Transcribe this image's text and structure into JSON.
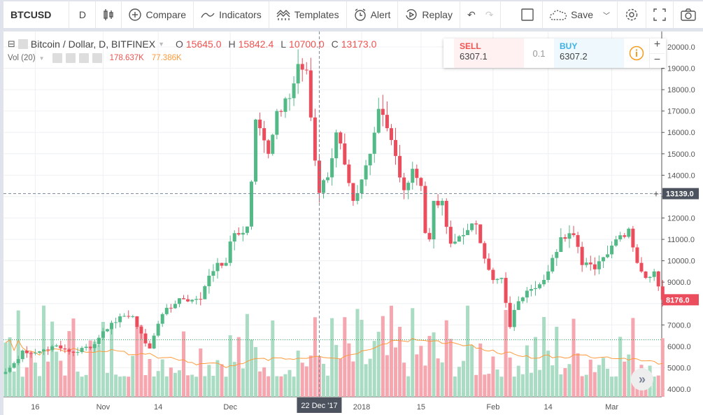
{
  "toolbar": {
    "symbol": "BTCUSD",
    "interval": "D",
    "compare": "Compare",
    "indicators": "Indicators",
    "templates": "Templates",
    "alert": "Alert",
    "replay": "Replay",
    "save": "Save"
  },
  "legend": {
    "title": "Bitcoin / Dollar, D, BITFINEX",
    "o_label": "O",
    "o": "15645.0",
    "h_label": "H",
    "h": "15842.4",
    "l_label": "L",
    "l": "10700.0",
    "c_label": "C",
    "c": "13173.0"
  },
  "volume": {
    "label": "Vol (20)",
    "value": "178.637K",
    "ma": "77.386K"
  },
  "trade": {
    "sell_label": "SELL",
    "sell": "6307.1",
    "spread": "0.1",
    "buy_label": "BUY",
    "buy": "6307.2"
  },
  "colors": {
    "up": "#53b987",
    "down": "#eb4d5c",
    "vol_up": "#a9dcc3",
    "vol_down": "#f5a6ae",
    "ma": "#ff9a3c",
    "bid_line": "#26a65b"
  },
  "chart_data": {
    "type": "candlestick",
    "ylim": [
      4000,
      20000
    ],
    "y_ticks": [
      "20000.0",
      "19000.0",
      "18000.0",
      "17000.0",
      "16000.0",
      "15000.0",
      "14000.0",
      "13000.0",
      "12000.0",
      "11000.0",
      "10000.0",
      "9000.0",
      "8000.0",
      "7000.0",
      "6000.0",
      "5000.0",
      "4000.0"
    ],
    "x_ticks": [
      "16",
      "Nov",
      "14",
      "Dec",
      "2018",
      "15",
      "Feb",
      "14",
      "Mar"
    ],
    "crosshair": {
      "date": "22 Dec '17",
      "price": "13139.0"
    },
    "last_price": "8176.0",
    "bid_line": 6307,
    "close_keypoints": [
      [
        "2017-10-09",
        4800
      ],
      [
        "2017-10-12",
        5400
      ],
      [
        "2017-10-13",
        5800
      ],
      [
        "2017-10-16",
        5700
      ],
      [
        "2017-10-20",
        6000
      ],
      [
        "2017-10-22",
        5900
      ],
      [
        "2017-10-25",
        5700
      ],
      [
        "2017-10-30",
        6100
      ],
      [
        "2017-11-01",
        6700
      ],
      [
        "2017-11-05",
        7400
      ],
      [
        "2017-11-08",
        7400
      ],
      [
        "2017-11-10",
        6600
      ],
      [
        "2017-11-12",
        5900
      ],
      [
        "2017-11-13",
        6500
      ],
      [
        "2017-11-16",
        7800
      ],
      [
        "2017-11-20",
        8200
      ],
      [
        "2017-11-24",
        8200
      ],
      [
        "2017-11-26",
        9300
      ],
      [
        "2017-11-28",
        9900
      ],
      [
        "2017-11-30",
        9900
      ],
      [
        "2017-12-01",
        10900
      ],
      [
        "2017-12-05",
        11600
      ],
      [
        "2017-12-06",
        13700
      ],
      [
        "2017-12-07",
        16600
      ],
      [
        "2017-12-08",
        16200
      ],
      [
        "2017-12-10",
        15000
      ],
      [
        "2017-12-12",
        17000
      ],
      [
        "2017-12-15",
        17600
      ],
      [
        "2017-12-17",
        19200
      ],
      [
        "2017-12-19",
        18900
      ],
      [
        "2017-12-20",
        16700
      ],
      [
        "2017-12-22",
        13173
      ],
      [
        "2017-12-24",
        13900
      ],
      [
        "2017-12-26",
        16000
      ],
      [
        "2017-12-28",
        14500
      ],
      [
        "2017-12-30",
        12800
      ],
      [
        "2018-01-01",
        13800
      ],
      [
        "2018-01-03",
        15000
      ],
      [
        "2018-01-05",
        17100
      ],
      [
        "2018-01-07",
        16200
      ],
      [
        "2018-01-09",
        14900
      ],
      [
        "2018-01-11",
        13300
      ],
      [
        "2018-01-13",
        14300
      ],
      [
        "2018-01-15",
        13500
      ],
      [
        "2018-01-16",
        11300
      ],
      [
        "2018-01-17",
        11000
      ],
      [
        "2018-01-18",
        12800
      ],
      [
        "2018-01-20",
        12800
      ],
      [
        "2018-01-22",
        10800
      ],
      [
        "2018-01-25",
        11200
      ],
      [
        "2018-01-28",
        11700
      ],
      [
        "2018-01-30",
        10100
      ],
      [
        "2018-02-01",
        9100
      ],
      [
        "2018-02-03",
        9200
      ],
      [
        "2018-02-05",
        6900
      ],
      [
        "2018-02-06",
        7700
      ],
      [
        "2018-02-09",
        8600
      ],
      [
        "2018-02-12",
        8900
      ],
      [
        "2018-02-14",
        9500
      ],
      [
        "2018-02-17",
        11100
      ],
      [
        "2018-02-20",
        11200
      ],
      [
        "2018-02-22",
        9800
      ],
      [
        "2018-02-25",
        9600
      ],
      [
        "2018-02-28",
        10300
      ],
      [
        "2018-03-02",
        11000
      ],
      [
        "2018-03-05",
        11500
      ],
      [
        "2018-03-07",
        9900
      ],
      [
        "2018-03-09",
        9200
      ],
      [
        "2018-03-11",
        9500
      ],
      [
        "2018-03-13",
        8176
      ]
    ]
  }
}
